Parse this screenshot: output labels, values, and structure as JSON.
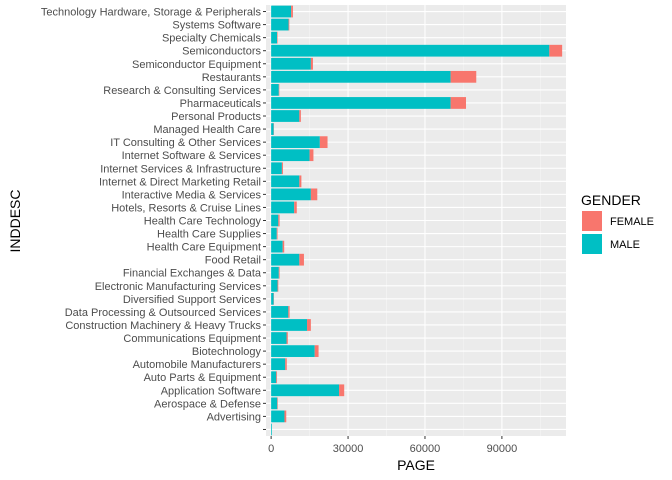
{
  "chart_data": {
    "type": "bar",
    "orientation": "horizontal",
    "stacked": true,
    "title": "",
    "xlabel": "PAGE",
    "ylabel": "INDDESC",
    "xlim": [
      -2000,
      115000
    ],
    "x_ticks": [
      0,
      30000,
      60000,
      90000
    ],
    "x_tick_labels": [
      "0",
      "30000",
      "60000",
      "90000"
    ],
    "grid": true,
    "legend": {
      "title": "GENDER",
      "position": "right",
      "entries": [
        {
          "label": "FEMALE",
          "color": "#F8766D"
        },
        {
          "label": "MALE",
          "color": "#00BFC4"
        }
      ]
    },
    "categories": [
      "Technology Hardware, Storage & Peripherals",
      "Systems Software",
      "Specialty Chemicals",
      "Semiconductors",
      "Semiconductor Equipment",
      "Restaurants",
      "Research & Consulting Services",
      "Pharmaceuticals",
      "Personal Products",
      "Managed Health Care",
      "IT Consulting & Other Services",
      "Internet Software & Services",
      "Internet Services & Infrastructure",
      "Internet & Direct Marketing Retail",
      "Interactive Media & Services",
      "Hotels, Resorts & Cruise Lines",
      "Health Care Technology",
      "Health Care Supplies",
      "Health Care Equipment",
      "Food Retail",
      "Financial Exchanges & Data",
      "Electronic Manufacturing Services",
      "Diversified Support Services",
      "Data Processing & Outsourced Services",
      "Construction Machinery & Heavy Trucks",
      "Communications Equipment",
      "Biotechnology",
      "Automobile Manufacturers",
      "Auto Parts & Equipment",
      "Application Software",
      "Aerospace & Defense",
      "Advertising",
      ""
    ],
    "series": [
      {
        "name": "MALE",
        "color": "#00BFC4",
        "values": [
          7800,
          6800,
          2300,
          108500,
          15500,
          70000,
          3000,
          70000,
          11000,
          1000,
          19000,
          15000,
          4200,
          11000,
          15500,
          9000,
          2800,
          2200,
          4500,
          11000,
          3000,
          2500,
          1000,
          6700,
          14000,
          6000,
          17000,
          5500,
          2000,
          26500,
          2400,
          5200,
          300
        ]
      },
      {
        "name": "FEMALE",
        "color": "#F8766D",
        "values": [
          700,
          300,
          200,
          5000,
          800,
          10000,
          200,
          6000,
          600,
          100,
          3000,
          1500,
          400,
          800,
          2500,
          1000,
          500,
          300,
          600,
          1800,
          300,
          300,
          100,
          500,
          1500,
          500,
          1500,
          600,
          300,
          2000,
          200,
          700,
          0
        ]
      }
    ]
  }
}
